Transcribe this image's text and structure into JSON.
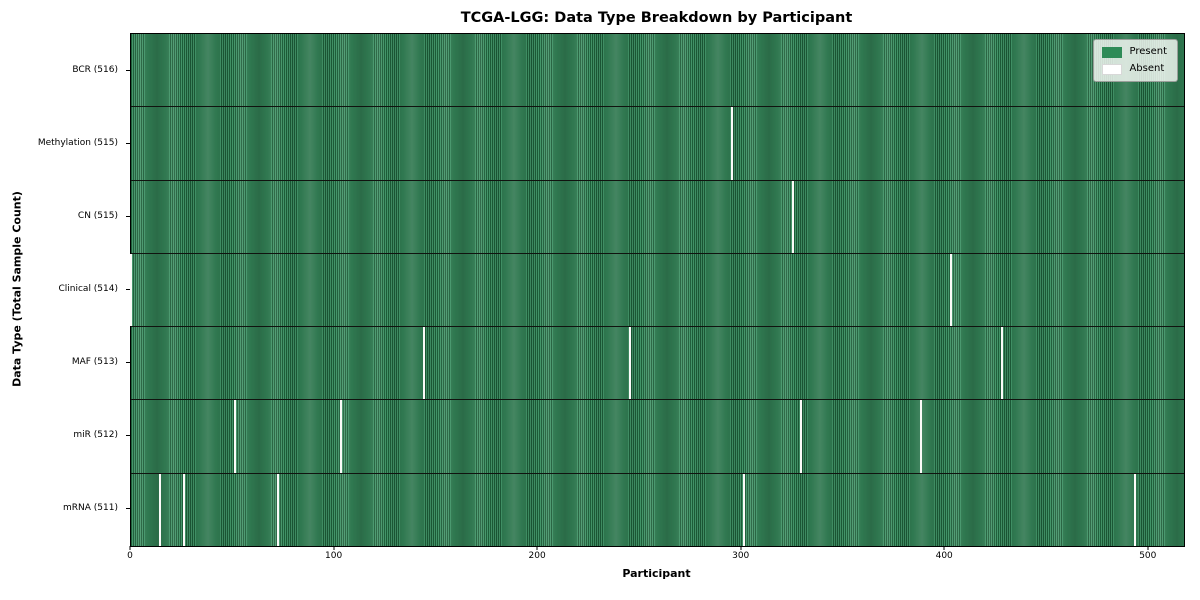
{
  "title": "TCGA-LGG: Data Type Breakdown by Participant",
  "xlabel": "Participant",
  "ylabel": "Data Type (Total Sample Count)",
  "legend": {
    "present_label": "Present",
    "absent_label": "Absent"
  },
  "colors": {
    "present": "#2e8b57",
    "present_edge": "#1d5c38",
    "absent": "#ffffff",
    "legend_bg": "#f2f5f1"
  },
  "chart_data": {
    "type": "heatmap",
    "title": "TCGA-LGG: Data Type Breakdown by Participant",
    "xlabel": "Participant",
    "ylabel": "Data Type (Total Sample Count)",
    "legend": [
      "Present",
      "Absent"
    ],
    "legend_position": "upper right",
    "grid": false,
    "total_participants": 516,
    "x_range": [
      0,
      516
    ],
    "x_tick_values": [
      0,
      100,
      200,
      300,
      400,
      500
    ],
    "rows": [
      {
        "data_type": "BCR",
        "label": "BCR (516)",
        "present_count": 516,
        "absent_participants": []
      },
      {
        "data_type": "Methylation",
        "label": "Methylation (515)",
        "present_count": 515,
        "absent_participants": [
          295
        ]
      },
      {
        "data_type": "CN",
        "label": "CN (515)",
        "present_count": 515,
        "absent_participants": [
          325
        ]
      },
      {
        "data_type": "Clinical",
        "label": "Clinical (514)",
        "present_count": 514,
        "absent_participants": [
          0,
          403
        ]
      },
      {
        "data_type": "MAF",
        "label": "MAF (513)",
        "present_count": 513,
        "absent_participants": [
          144,
          245,
          428
        ]
      },
      {
        "data_type": "miR",
        "label": "miR (512)",
        "present_count": 512,
        "absent_participants": [
          51,
          103,
          329,
          388
        ]
      },
      {
        "data_type": "mRNA",
        "label": "mRNA (511)",
        "present_count": 511,
        "absent_participants": [
          14,
          26,
          72,
          301,
          493
        ]
      }
    ]
  }
}
